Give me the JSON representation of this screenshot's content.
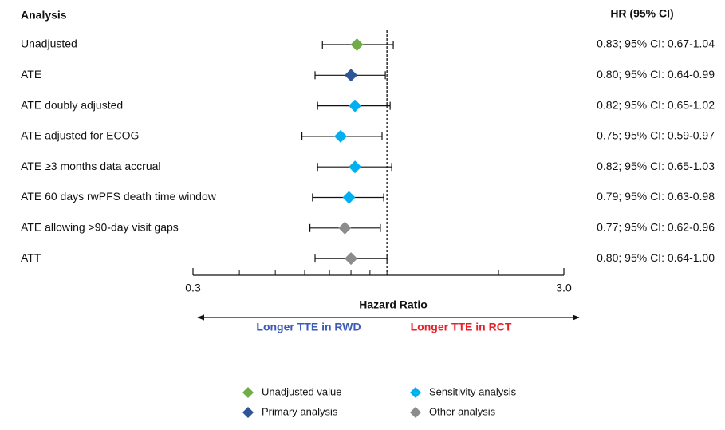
{
  "chart_data": {
    "type": "forest",
    "analysis_header": "Analysis",
    "value_header": "HR (95% CI)",
    "categories": [
      "Unadjusted",
      "ATE",
      "ATE doubly adjusted",
      "ATE adjusted for ECOG",
      "ATE ≥3 months data accrual",
      "ATE 60 days rwPFS death time window",
      "ATE allowing >90-day visit gaps",
      "ATT"
    ],
    "values": [
      0.83,
      0.8,
      0.82,
      0.75,
      0.82,
      0.79,
      0.77,
      0.8
    ],
    "lower": [
      0.67,
      0.64,
      0.65,
      0.59,
      0.65,
      0.63,
      0.62,
      0.64
    ],
    "upper": [
      1.04,
      0.99,
      1.02,
      0.97,
      1.03,
      0.98,
      0.96,
      1.0
    ],
    "value_labels": [
      "0.83; 95% CI: 0.67-1.04",
      "0.80; 95% CI: 0.64-0.99",
      "0.82; 95% CI: 0.65-1.02",
      "0.75; 95% CI: 0.59-0.97",
      "0.82; 95% CI: 0.65-1.03",
      "0.79; 95% CI: 0.63-0.98",
      "0.77; 95% CI: 0.62-0.96",
      "0.80; 95% CI: 0.64-1.00"
    ],
    "point_group": [
      0,
      1,
      2,
      2,
      2,
      2,
      3,
      3
    ],
    "legend": [
      {
        "name": "Unadjusted value",
        "color": "#70ad47"
      },
      {
        "name": "Primary analysis",
        "color": "#2f5597"
      },
      {
        "name": "Sensitivity analysis",
        "color": "#00b0f0"
      },
      {
        "name": "Other analysis",
        "color": "#8c8c8c"
      }
    ],
    "xlabel": "Hazard Ratio",
    "xscale": "log",
    "xlim": [
      0.3,
      3
    ],
    "xticks": [
      0.3,
      {
        "value": 3,
        "label": "3.0"
      }
    ],
    "xminorticks": [
      0.4,
      0.5,
      0.6,
      0.7,
      0.8,
      0.9,
      1,
      2
    ],
    "refline": 1,
    "left_arrow_label": "Longer TTE in RWD",
    "right_arrow_label": "Longer TTE in RCT"
  }
}
